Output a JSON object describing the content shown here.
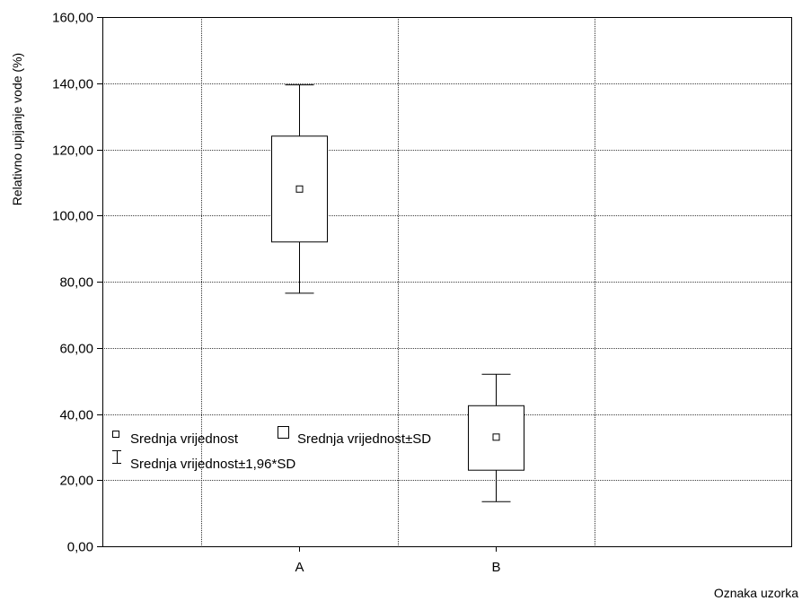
{
  "chart_data": {
    "type": "box",
    "xlabel": "Oznaka uzorka",
    "ylabel": "Relativno upijanje vode (%)",
    "ylim": [
      0,
      160
    ],
    "ytick_values": [
      0,
      20,
      40,
      60,
      80,
      100,
      120,
      140,
      160
    ],
    "ytick_labels": [
      "0,00",
      "20,00",
      "40,00",
      "60,00",
      "80,00",
      "100,00",
      "120,00",
      "140,00",
      "160,00"
    ],
    "categories": [
      "A",
      "B"
    ],
    "x_positions": [
      2.5,
      3.5
    ],
    "xlim": [
      1.5,
      5
    ],
    "x_gridlines": [
      2,
      3,
      4
    ],
    "grid": true,
    "series": [
      {
        "category": "A",
        "mean": 108,
        "sd_low": 92,
        "sd_high": 124,
        "ci_low": 76.5,
        "ci_high": 139.5
      },
      {
        "category": "B",
        "mean": 33,
        "sd_low": 23,
        "sd_high": 42.5,
        "ci_low": 13.5,
        "ci_high": 52
      }
    ],
    "legend": {
      "position": "lower-left",
      "items": [
        {
          "symbol": "mean",
          "label": "Srednja vrijednost"
        },
        {
          "symbol": "box",
          "label": "Srednja vrijednost±SD"
        },
        {
          "symbol": "whisker",
          "label": "Srednja vrijednost±1,96*SD"
        }
      ]
    }
  }
}
